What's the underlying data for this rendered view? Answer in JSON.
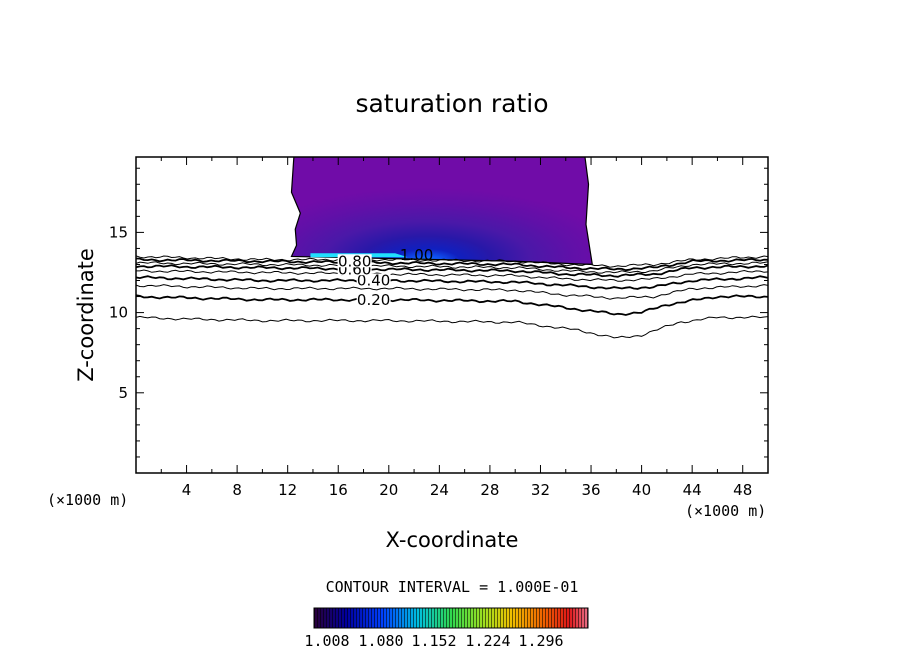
{
  "chart_data": {
    "type": "contour",
    "title": "saturation ratio",
    "xlabel": "X-coordinate",
    "ylabel": "Z-coordinate",
    "x_unit": "(×1000 m)",
    "y_unit": "(×1000 m)",
    "xlim": [
      0,
      50
    ],
    "ylim": [
      0,
      19.7
    ],
    "x_ticks": [
      4,
      8,
      12,
      16,
      20,
      24,
      28,
      32,
      36,
      40,
      44,
      48
    ],
    "y_ticks": [
      5,
      10,
      15
    ],
    "contour_interval_text": "CONTOUR INTERVAL = 1.000E-01",
    "contour_labels": [
      "0.20",
      "0.40",
      "0.60",
      "0.80",
      "1.00"
    ],
    "contour_lines": [
      {
        "level": "0.10",
        "x": [
          0,
          4,
          10,
          20,
          30,
          35,
          38,
          40,
          43,
          46,
          50
        ],
        "z": [
          9.7,
          9.6,
          9.5,
          9.5,
          9.4,
          8.9,
          8.4,
          8.6,
          9.4,
          9.7,
          9.7
        ]
      },
      {
        "level": "0.20",
        "x": [
          0,
          10,
          20,
          30,
          34,
          38,
          40,
          42,
          46,
          50
        ],
        "z": [
          11.0,
          10.8,
          10.8,
          10.7,
          10.3,
          9.9,
          10.0,
          10.5,
          11.0,
          11.0
        ]
      },
      {
        "level": "0.30",
        "x": [
          0,
          10,
          20,
          30,
          34,
          38,
          41,
          44,
          50
        ],
        "z": [
          11.7,
          11.5,
          11.5,
          11.4,
          11.1,
          10.9,
          11.0,
          11.5,
          11.7
        ]
      },
      {
        "level": "0.40",
        "x": [
          0,
          10,
          20,
          30,
          34,
          38,
          41,
          44,
          50
        ],
        "z": [
          12.2,
          12.0,
          12.0,
          11.9,
          11.7,
          11.5,
          11.6,
          12.0,
          12.2
        ]
      },
      {
        "level": "0.50",
        "x": [
          0,
          10,
          20,
          30,
          34,
          38,
          41,
          44,
          50
        ],
        "z": [
          12.6,
          12.5,
          12.4,
          12.3,
          12.1,
          12.0,
          12.1,
          12.4,
          12.6
        ]
      },
      {
        "level": "0.60",
        "x": [
          0,
          10,
          20,
          30,
          34,
          38,
          41,
          44,
          50
        ],
        "z": [
          12.9,
          12.8,
          12.7,
          12.6,
          12.4,
          12.3,
          12.4,
          12.8,
          12.9
        ]
      },
      {
        "level": "0.70",
        "x": [
          0,
          10,
          20,
          30,
          34,
          38,
          41,
          44,
          50
        ],
        "z": [
          13.1,
          13.0,
          12.9,
          12.8,
          12.6,
          12.5,
          12.6,
          13.0,
          13.1
        ]
      },
      {
        "level": "0.80",
        "x": [
          0,
          10,
          20,
          30,
          34,
          38,
          41,
          44,
          50
        ],
        "z": [
          13.3,
          13.2,
          13.1,
          13.0,
          12.8,
          12.7,
          12.8,
          13.2,
          13.3
        ]
      },
      {
        "level": "0.90",
        "x": [
          0,
          10,
          20,
          30,
          34,
          38,
          41,
          44,
          50
        ],
        "z": [
          13.5,
          13.3,
          13.3,
          13.2,
          13.0,
          12.9,
          13.0,
          13.3,
          13.5
        ]
      }
    ],
    "shaded_region": {
      "x_range": [
        12.3,
        36.1
      ],
      "z_range": [
        13.0,
        19.7
      ],
      "peak_center": [
        23.5,
        13.3
      ]
    },
    "colorbar": {
      "min": 1.0,
      "max": 1.35,
      "labels": [
        "1.008",
        "1.080",
        "1.152",
        "1.224",
        "1.296"
      ],
      "colors": [
        "#3a0050",
        "#0000c0",
        "#00c0e0",
        "#40e040",
        "#c0e020",
        "#f08000",
        "#e02000",
        "#e05060"
      ]
    }
  }
}
